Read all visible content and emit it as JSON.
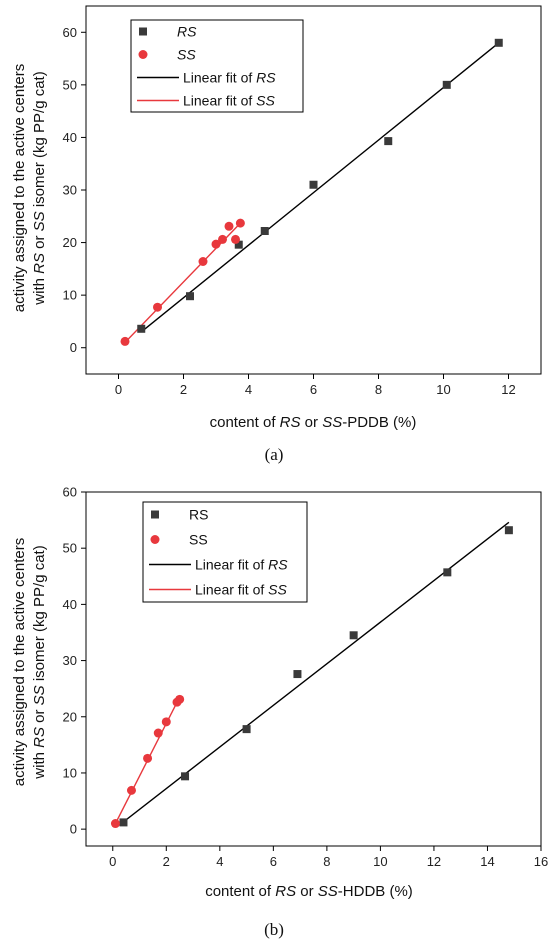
{
  "panels": [
    {
      "panel_label": "(a)",
      "xlabel": {
        "pre": "content of ",
        "it1": "RS",
        "mid": " or ",
        "it2": "SS",
        "post": "-PDDB (%)"
      },
      "ylabel_line1": "activity assigned to the active centers",
      "ylabel_line2": {
        "pre": "with ",
        "it1": "RS",
        "mid": " or ",
        "it2": "SS",
        "post": " isomer (kg PP/g cat)"
      },
      "legend": [
        {
          "kind": "square",
          "color": "#3a3a3a",
          "label": "RS",
          "italic": true
        },
        {
          "kind": "circle",
          "color": "#e8383d",
          "label": "SS",
          "italic": true
        },
        {
          "kind": "line",
          "color": "#000000",
          "pre": "Linear fit of ",
          "italic_part": "RS"
        },
        {
          "kind": "line",
          "color": "#e8383d",
          "pre": "Linear fit of ",
          "italic_part": "SS"
        }
      ]
    },
    {
      "panel_label": "(b)",
      "xlabel": {
        "pre": "content of ",
        "it1": "RS",
        "mid": " or ",
        "it2": "SS",
        "post": "-HDDB (%)"
      },
      "ylabel_line1": "activity assigned to the active centers",
      "ylabel_line2": {
        "pre": "with ",
        "it1": "RS",
        "mid": " or ",
        "it2": "SS",
        "post": " isomer (kg PP/g cat)"
      },
      "legend": [
        {
          "kind": "square",
          "color": "#3a3a3a",
          "label": "RS",
          "italic": false
        },
        {
          "kind": "circle",
          "color": "#e8383d",
          "label": "SS",
          "italic": false
        },
        {
          "kind": "line",
          "color": "#000000",
          "pre": "Linear fit of ",
          "italic_part": "RS"
        },
        {
          "kind": "line",
          "color": "#e8383d",
          "pre": "Linear fit of ",
          "italic_part": "SS"
        }
      ]
    }
  ],
  "chart_data": [
    {
      "type": "scatter",
      "xlim": [
        -1,
        13
      ],
      "ylim": [
        -5,
        65
      ],
      "xticks": [
        0,
        2,
        4,
        6,
        8,
        10,
        12
      ],
      "yticks": [
        0,
        10,
        20,
        30,
        40,
        50,
        60
      ],
      "series": [
        {
          "name": "RS",
          "marker": "square",
          "color": "#3a3a3a",
          "x": [
            0.7,
            2.2,
            3.7,
            4.5,
            6.0,
            8.3,
            10.1,
            11.7
          ],
          "y": [
            3.6,
            9.8,
            19.6,
            22.2,
            31.0,
            39.3,
            50.0,
            58.0
          ]
        },
        {
          "name": "SS",
          "marker": "circle",
          "color": "#e8383d",
          "x": [
            0.2,
            1.2,
            2.6,
            3.0,
            3.2,
            3.4,
            3.6,
            3.75
          ],
          "y": [
            1.2,
            7.7,
            16.4,
            19.7,
            20.6,
            23.1,
            20.6,
            23.7
          ]
        }
      ],
      "fits": [
        {
          "name": "Linear fit of RS",
          "color": "#000000",
          "x": [
            0.7,
            11.7
          ],
          "y": [
            3.0,
            58.0
          ]
        },
        {
          "name": "Linear fit of SS",
          "color": "#e8383d",
          "x": [
            0.2,
            3.75
          ],
          "y": [
            1.0,
            23.7
          ]
        }
      ]
    },
    {
      "type": "scatter",
      "xlim": [
        -1,
        16
      ],
      "ylim": [
        -3,
        60
      ],
      "xticks": [
        0,
        2,
        4,
        6,
        8,
        10,
        12,
        14,
        16
      ],
      "yticks": [
        0,
        10,
        20,
        30,
        40,
        50,
        60
      ],
      "series": [
        {
          "name": "RS",
          "marker": "square",
          "color": "#3a3a3a",
          "x": [
            0.4,
            2.7,
            5.0,
            6.9,
            9.0,
            12.5,
            14.8
          ],
          "y": [
            1.2,
            9.4,
            17.8,
            27.6,
            34.5,
            45.7,
            53.2
          ]
        },
        {
          "name": "SS",
          "marker": "circle",
          "color": "#e8383d",
          "x": [
            0.1,
            0.7,
            1.3,
            1.7,
            2.0,
            2.4,
            2.5
          ],
          "y": [
            1.0,
            6.9,
            12.6,
            17.1,
            19.1,
            22.6,
            23.1
          ]
        }
      ],
      "fits": [
        {
          "name": "Linear fit of RS",
          "color": "#000000",
          "x": [
            0.4,
            14.8
          ],
          "y": [
            1.3,
            54.6
          ]
        },
        {
          "name": "Linear fit of SS",
          "color": "#e8383d",
          "x": [
            0.1,
            2.5
          ],
          "y": [
            1.0,
            23.5
          ]
        }
      ]
    }
  ]
}
